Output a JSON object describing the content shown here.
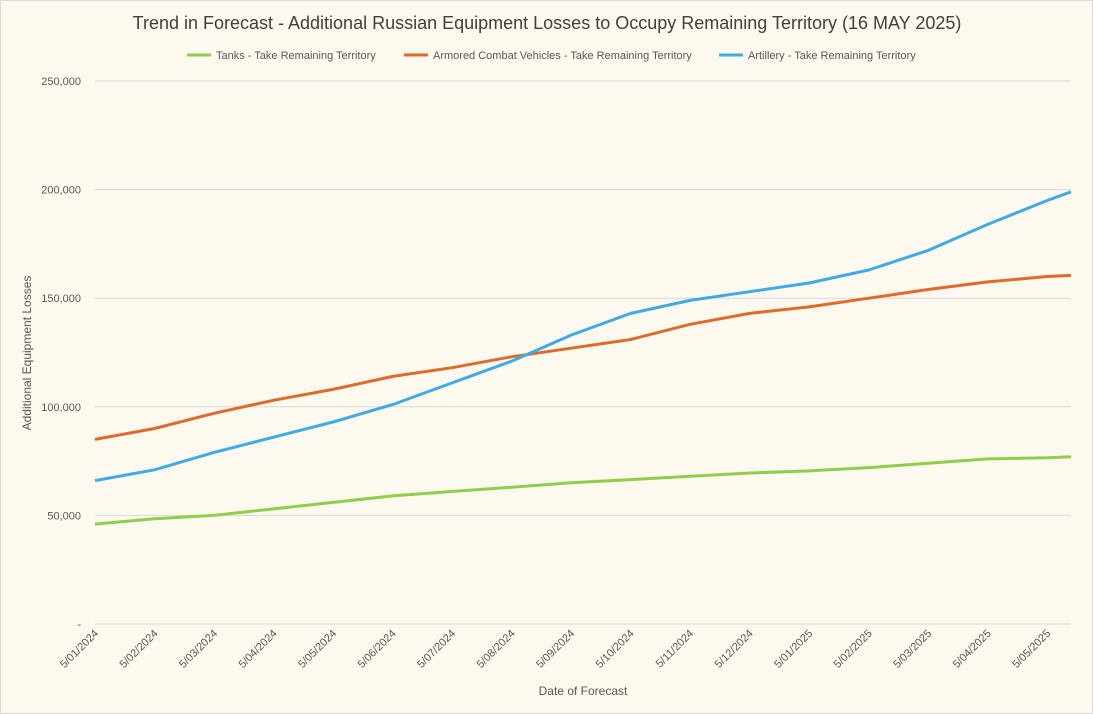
{
  "chart_data": {
    "type": "line",
    "title": "Trend in Forecast - Additional Russian Equipment Losses to Occupy Remaining Territory (16 MAY 2025)",
    "xlabel": "Date of Forecast",
    "ylabel": "Additional Equipment Losses",
    "ylim": [
      0,
      250000
    ],
    "y_ticks": [
      0,
      50000,
      100000,
      150000,
      200000,
      250000
    ],
    "y_tick_labels": [
      "-",
      "50,000",
      "100,000",
      "150,000",
      "200,000",
      "250,000"
    ],
    "x_tick_labels": [
      "5/01/2024",
      "5/02/2024",
      "5/03/2024",
      "5/04/2024",
      "5/05/2024",
      "5/06/2024",
      "5/07/2024",
      "5/08/2024",
      "5/09/2024",
      "5/10/2024",
      "5/11/2024",
      "5/12/2024",
      "5/01/2025",
      "5/02/2025",
      "5/03/2025",
      "5/04/2025",
      "5/05/2025"
    ],
    "legend_position": "top",
    "grid": true,
    "colors": {
      "tanks": "#8fcf47",
      "acv": "#e06a2b",
      "artillery": "#3eaae6"
    },
    "series": [
      {
        "name": "Tanks - Take Remaining Territory",
        "color": "#8fcf47",
        "points": [
          [
            0,
            46000
          ],
          [
            1,
            48500
          ],
          [
            2,
            50000
          ],
          [
            3,
            53000
          ],
          [
            4,
            56000
          ],
          [
            5,
            59000
          ],
          [
            6,
            61000
          ],
          [
            7,
            63000
          ],
          [
            8,
            65000
          ],
          [
            9,
            66500
          ],
          [
            10,
            68000
          ],
          [
            11,
            69500
          ],
          [
            12,
            70500
          ],
          [
            13,
            72000
          ],
          [
            14,
            74000
          ],
          [
            15,
            76000
          ],
          [
            16,
            76500
          ],
          [
            16.4,
            77000
          ]
        ]
      },
      {
        "name": "Armored Combat Vehicles - Take Remaining Territory",
        "color": "#e06a2b",
        "points": [
          [
            0,
            85000
          ],
          [
            1,
            90000
          ],
          [
            2,
            97000
          ],
          [
            3,
            103000
          ],
          [
            4,
            108000
          ],
          [
            5,
            114000
          ],
          [
            6,
            118000
          ],
          [
            7,
            123000
          ],
          [
            8,
            127000
          ],
          [
            9,
            131000
          ],
          [
            10,
            138000
          ],
          [
            11,
            143000
          ],
          [
            12,
            146000
          ],
          [
            13,
            150000
          ],
          [
            14,
            154000
          ],
          [
            15,
            157500
          ],
          [
            16,
            160000
          ],
          [
            16.4,
            160500
          ]
        ]
      },
      {
        "name": "Artillery - Take Remaining Territory",
        "color": "#3eaae6",
        "points": [
          [
            0,
            66000
          ],
          [
            1,
            71000
          ],
          [
            2,
            79000
          ],
          [
            3,
            86000
          ],
          [
            4,
            93000
          ],
          [
            5,
            101000
          ],
          [
            6,
            111000
          ],
          [
            7,
            121000
          ],
          [
            8,
            133000
          ],
          [
            9,
            143000
          ],
          [
            10,
            149000
          ],
          [
            11,
            153000
          ],
          [
            12,
            157000
          ],
          [
            13,
            163000
          ],
          [
            14,
            172000
          ],
          [
            15,
            184000
          ],
          [
            16,
            195000
          ],
          [
            16.4,
            199000
          ]
        ]
      }
    ]
  }
}
